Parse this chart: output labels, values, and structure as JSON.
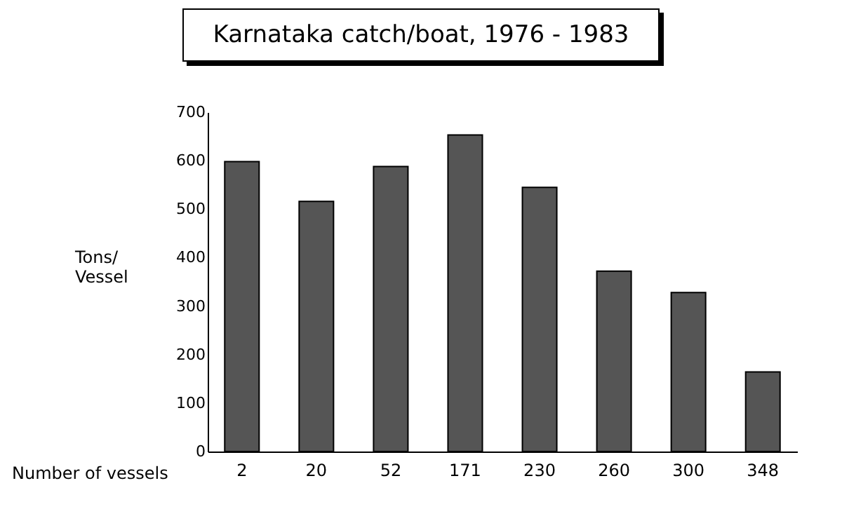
{
  "chart_data": {
    "type": "bar",
    "title": "Karnataka catch/boat, 1976 - 1983",
    "xlabel": "Number of vessels",
    "ylabel": "Tons/\nVessel",
    "categories": [
      "2",
      "20",
      "52",
      "171",
      "230",
      "260",
      "300",
      "348"
    ],
    "values": [
      598,
      516,
      588,
      653,
      545,
      372,
      328,
      164
    ],
    "color": "#555555",
    "ylim": [
      0,
      700
    ],
    "yticks": [
      0,
      100,
      200,
      300,
      400,
      500,
      600,
      700
    ],
    "grid": false
  }
}
